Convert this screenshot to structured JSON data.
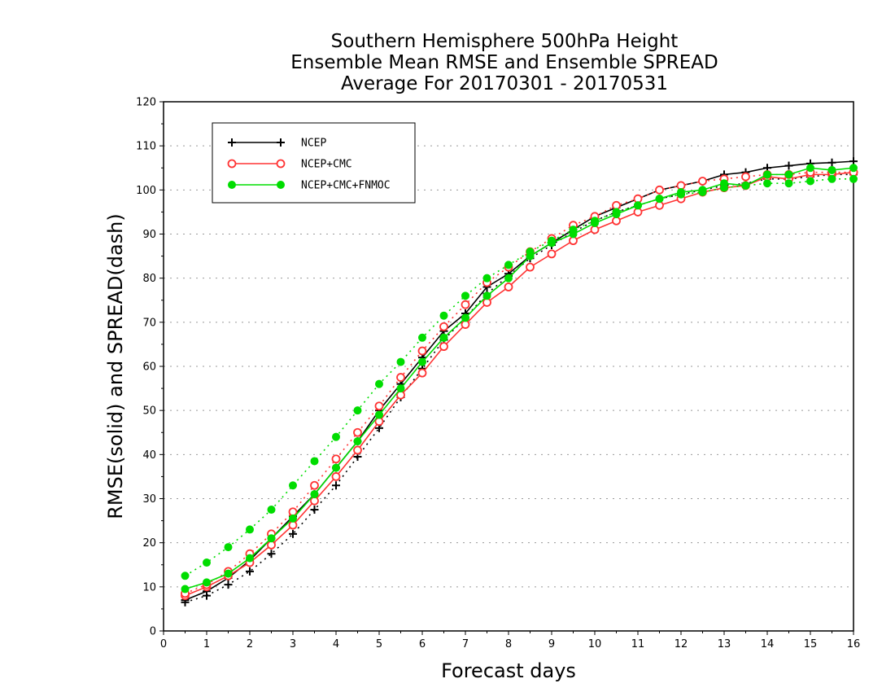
{
  "chart_data": {
    "type": "line",
    "title_lines": [
      "Southern Hemisphere 500hPa Height",
      "Ensemble Mean RMSE and Ensemble SPREAD",
      "Average For 20170301 - 20170531"
    ],
    "xlabel": "Forecast days",
    "ylabel": "RMSE(solid) and SPREAD(dash)",
    "xlim": [
      0,
      16
    ],
    "ylim": [
      0,
      120
    ],
    "xticks": [
      0,
      1,
      2,
      3,
      4,
      5,
      6,
      7,
      8,
      9,
      10,
      11,
      12,
      13,
      14,
      15,
      16
    ],
    "yticks": [
      0,
      10,
      20,
      30,
      40,
      50,
      60,
      70,
      80,
      90,
      100,
      110,
      120
    ],
    "grid": "horizontal dotted",
    "legend_position": "top-left",
    "x": [
      0.5,
      1,
      1.5,
      2,
      2.5,
      3,
      3.5,
      4,
      4.5,
      5,
      5.5,
      6,
      6.5,
      7,
      7.5,
      8,
      8.5,
      9,
      9.5,
      10,
      10.5,
      11,
      11.5,
      12,
      12.5,
      13,
      13.5,
      14,
      14.5,
      15,
      15.5,
      16
    ],
    "series": [
      {
        "name": "NCEP",
        "color": "#000000",
        "marker": "plus",
        "rmse": [
          7,
          9,
          12,
          16,
          21,
          26,
          31,
          37,
          43,
          50,
          56,
          62,
          68,
          72,
          78,
          81,
          85,
          88,
          91,
          94,
          96,
          98,
          100,
          101,
          102,
          103.5,
          104,
          105,
          105.5,
          106,
          106.2,
          106.5
        ],
        "spread": [
          6.5,
          8,
          10.5,
          13.5,
          17.5,
          22,
          27.5,
          33,
          39.5,
          46,
          53,
          59.5,
          66,
          71,
          76.5,
          80.5,
          84.5,
          87.5,
          90.5,
          93,
          95,
          96.5,
          98,
          99,
          100,
          101,
          101.5,
          102.5,
          102.5,
          103,
          103.5,
          103.5
        ]
      },
      {
        "name": "NCEP+CMC",
        "color": "#ff3333",
        "marker": "open-circle",
        "rmse": [
          8,
          10,
          12.5,
          15.5,
          19.5,
          24,
          29.5,
          35,
          41,
          47.5,
          53.5,
          58.5,
          64.5,
          69.5,
          74.5,
          78,
          82.5,
          85.5,
          88.5,
          91,
          93,
          95,
          96.5,
          98,
          99.5,
          100.5,
          101,
          103,
          102.5,
          103.5,
          103.5,
          104
        ],
        "spread": [
          8.5,
          10.5,
          13.5,
          17.5,
          22,
          27,
          33,
          39,
          45,
          51,
          57.5,
          63.5,
          69,
          74,
          79,
          82.5,
          86,
          89,
          92,
          94,
          96.5,
          98,
          100,
          101,
          102,
          102.5,
          103,
          103.5,
          103.5,
          104,
          104,
          104
        ]
      },
      {
        "name": "NCEP+CMC+FNMOC",
        "color": "#00dd00",
        "marker": "filled-circle",
        "rmse": [
          9.5,
          11,
          13,
          16.5,
          21,
          25.5,
          31,
          37,
          43,
          49,
          55,
          61,
          66.5,
          71,
          76,
          80,
          85,
          88,
          90,
          92.5,
          94.5,
          96.5,
          98,
          99.5,
          100,
          101.5,
          101,
          103.5,
          103.5,
          105,
          104.5,
          105
        ],
        "spread": [
          12.5,
          15.5,
          19,
          23,
          27.5,
          33,
          38.5,
          44,
          50,
          56,
          61,
          66.5,
          71.5,
          76,
          80,
          83,
          86,
          88.5,
          91,
          93,
          95,
          96.5,
          98,
          99,
          99.5,
          100.5,
          101,
          101.5,
          101.5,
          102,
          102.5,
          102.5
        ]
      }
    ]
  }
}
